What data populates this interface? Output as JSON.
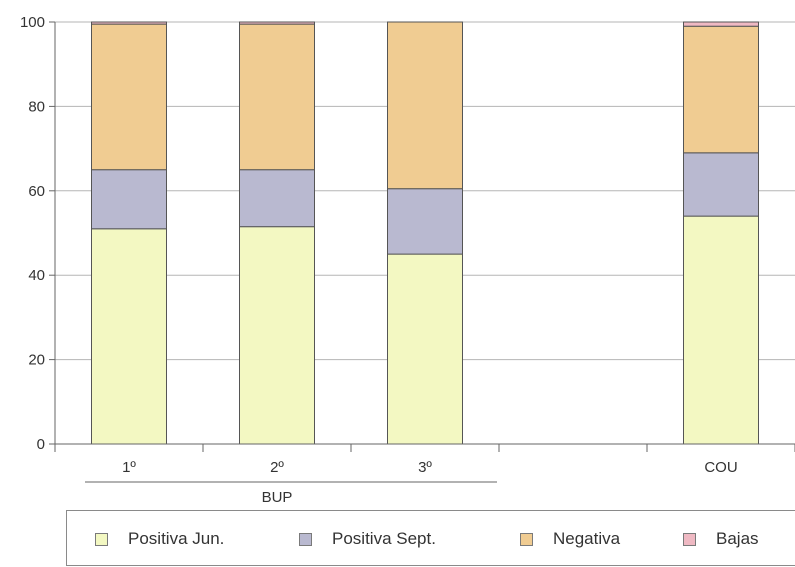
{
  "chart_data": {
    "type": "bar",
    "stacked": true,
    "categories": [
      "1º",
      "2º",
      "3º",
      "",
      "COU"
    ],
    "group_label": "BUP",
    "series": [
      {
        "name": "Positiva Jun.",
        "color": "#f3f8c2",
        "values": [
          51,
          51.5,
          45,
          null,
          54
        ]
      },
      {
        "name": "Positiva Sept.",
        "color": "#b9b9d0",
        "values": [
          14,
          13.5,
          15.5,
          null,
          15
        ]
      },
      {
        "name": "Negativa",
        "color": "#f0cc92",
        "values": [
          34.5,
          34.5,
          39.5,
          null,
          30
        ]
      },
      {
        "name": "Bajas",
        "color": "#efb9c3",
        "values": [
          0.5,
          0.5,
          0,
          null,
          1
        ]
      }
    ],
    "ylim": [
      0,
      100
    ],
    "yticks": [
      0,
      20,
      40,
      60,
      80,
      100
    ],
    "grid": true,
    "legend_position": "bottom"
  }
}
